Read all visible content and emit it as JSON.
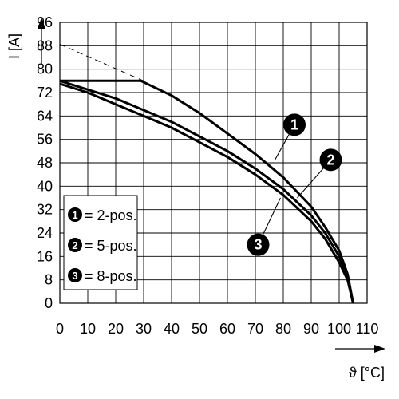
{
  "chart_data": {
    "type": "line",
    "title": "",
    "xlabel": "ϑ [°C]",
    "ylabel": "I [A]",
    "xlim": [
      0,
      110
    ],
    "ylim": [
      0,
      96
    ],
    "x_ticks": [
      0,
      10,
      20,
      30,
      40,
      50,
      60,
      70,
      80,
      90,
      100,
      110
    ],
    "y_ticks": [
      0,
      8,
      16,
      24,
      32,
      40,
      48,
      56,
      64,
      72,
      80,
      88,
      96
    ],
    "grid": true,
    "legend_position": "bottom-left",
    "series": [
      {
        "id": "1",
        "name": "= 2-pos.",
        "color": "#000000",
        "x": [
          0,
          29,
          40,
          50,
          60,
          70,
          80,
          90,
          95,
          100,
          103,
          105
        ],
        "y": [
          76,
          76,
          71,
          65,
          58,
          51,
          43,
          33,
          26,
          18,
          10,
          0
        ]
      },
      {
        "id": "2",
        "name": "= 5-pos.",
        "color": "#000000",
        "x": [
          0,
          10,
          20,
          30,
          40,
          50,
          60,
          70,
          80,
          90,
          95,
          100,
          103,
          105
        ],
        "y": [
          76,
          73,
          70,
          66,
          62,
          57,
          52,
          46,
          39,
          30,
          24,
          16,
          9,
          0
        ]
      },
      {
        "id": "3",
        "name": "= 8-pos.",
        "color": "#000000",
        "x": [
          0,
          10,
          20,
          30,
          40,
          50,
          60,
          70,
          80,
          90,
          95,
          100,
          103,
          105
        ],
        "y": [
          75,
          72,
          68,
          64,
          60,
          55,
          50,
          44,
          37,
          28,
          22,
          14,
          8,
          0
        ]
      }
    ],
    "reference_line": {
      "style": "dashed",
      "x": [
        0,
        30
      ],
      "y": [
        88.5,
        76
      ]
    },
    "markers": [
      {
        "label": "1",
        "x": 84,
        "y": 61
      },
      {
        "label": "2",
        "x": 97,
        "y": 49
      },
      {
        "label": "3",
        "x": 71,
        "y": 20
      }
    ]
  }
}
